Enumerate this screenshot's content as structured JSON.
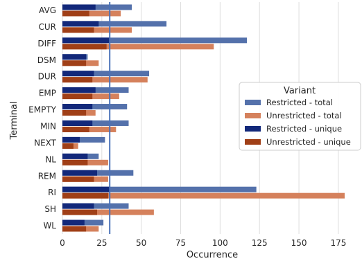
{
  "chart_data": {
    "type": "bar",
    "orientation": "horizontal",
    "xlabel": "Occurrence",
    "ylabel": "Terminal",
    "xlim": [
      0,
      190
    ],
    "xticks": [
      0,
      25,
      50,
      75,
      100,
      125,
      150,
      175
    ],
    "grid": true,
    "categories": [
      "AVG",
      "CUR",
      "DIFF",
      "DSM",
      "DUR",
      "EMP",
      "EMPTY",
      "MIN",
      "NEXT",
      "NL",
      "REM",
      "RI",
      "SH",
      "WL"
    ],
    "series": [
      {
        "name": "Restricted - total",
        "color": "#5471ab",
        "values": [
          44,
          66,
          117,
          16,
          55,
          42,
          41,
          42,
          27,
          23,
          45,
          123,
          42,
          26
        ]
      },
      {
        "name": "Unrestricted - total",
        "color": "#d5815c",
        "values": [
          37,
          44,
          96,
          23,
          54,
          36,
          21,
          34,
          10,
          29,
          29,
          179,
          58,
          23
        ]
      },
      {
        "name": "Restricted - unique",
        "color": "#12287a",
        "values": [
          21,
          23,
          30,
          15,
          20,
          21,
          19,
          19,
          11,
          16,
          22,
          30,
          20,
          14
        ]
      },
      {
        "name": "Unrestricted - unique",
        "color": "#a03f17",
        "values": [
          17,
          20,
          28,
          15,
          19,
          19,
          15,
          17,
          7,
          16,
          20,
          29,
          22,
          15
        ]
      }
    ],
    "reference_line": {
      "x": 30,
      "color": "#4a72b8"
    },
    "legend": {
      "title": "Variant",
      "placement": "right",
      "items": [
        "Restricted - total",
        "Unrestricted - total",
        "Restricted - unique",
        "Unrestricted - unique"
      ]
    }
  }
}
